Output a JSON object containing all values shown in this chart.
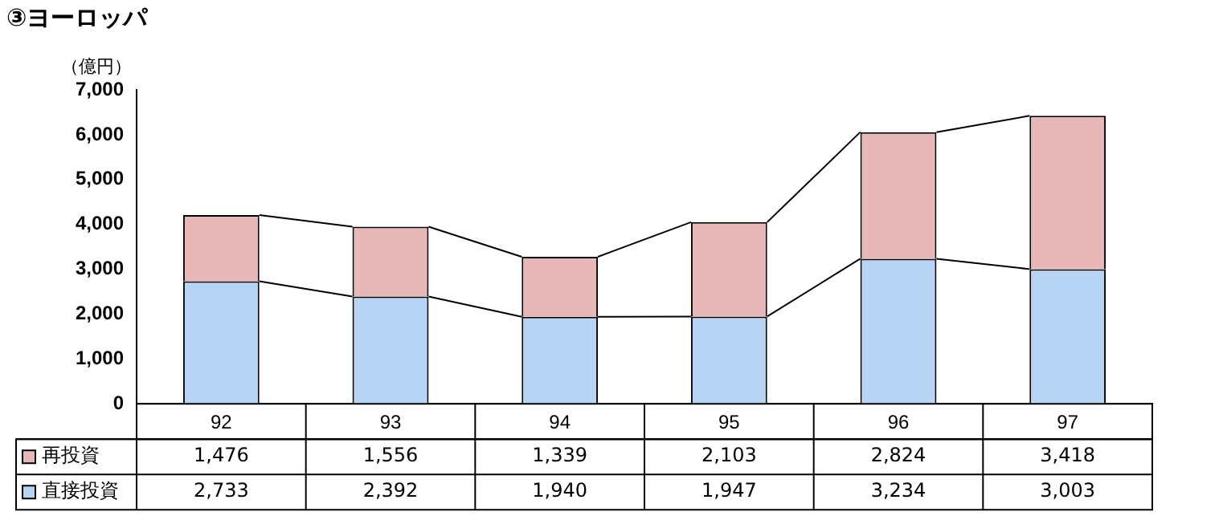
{
  "chart_data": {
    "type": "bar",
    "title": "③ヨーロッパ",
    "ylabel": "（億円）",
    "stacked": true,
    "categories": [
      "92",
      "93",
      "94",
      "95",
      "96",
      "97"
    ],
    "series": [
      {
        "name": "直接投資",
        "color": "#b8d4f4",
        "values": [
          2733,
          2392,
          1940,
          1947,
          3234,
          3003
        ],
        "value_labels": [
          "2,733",
          "2,392",
          "1,940",
          "1,947",
          "3,234",
          "3,003"
        ]
      },
      {
        "name": "再投資",
        "color": "#e8b8b8",
        "values": [
          1476,
          1556,
          1339,
          2103,
          2824,
          3418
        ],
        "value_labels": [
          "1,476",
          "1,556",
          "1,339",
          "2,103",
          "2,824",
          "3,418"
        ]
      }
    ],
    "ylim": [
      0,
      7000
    ],
    "yticks": [
      0,
      {
        "value": 1000,
        "label": "1,000"
      },
      {
        "value": 2000,
        "label": "2,000"
      },
      {
        "value": 3000,
        "label": "3,000"
      },
      {
        "value": 4000,
        "label": "4,000"
      },
      {
        "value": 5000,
        "label": "5,000"
      },
      {
        "value": 6000,
        "label": "6,000"
      },
      {
        "value": 7000,
        "label": "7,000"
      }
    ],
    "grid": false,
    "legend": "bottom"
  }
}
